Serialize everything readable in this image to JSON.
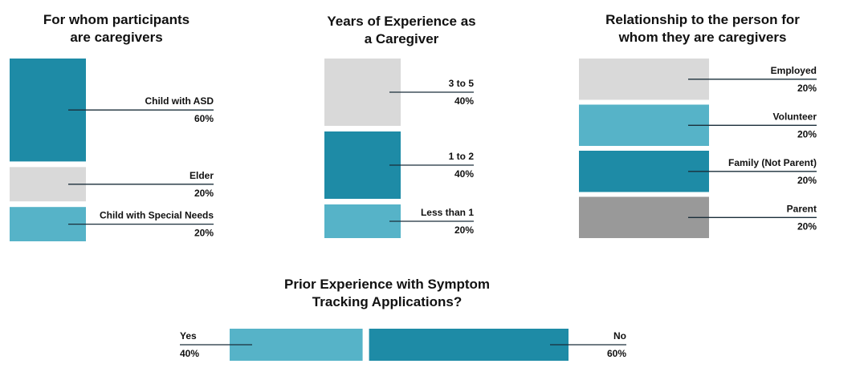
{
  "colors": {
    "teal_dark": "#1E8BA6",
    "teal_light": "#56B3C8",
    "light_gray": "#D9D9D9",
    "mid_gray": "#999999",
    "leader_line": "#1A2E3A"
  },
  "chart_data": [
    {
      "type": "bar",
      "stacked": true,
      "orientation": "vertical-stack",
      "title": "For whom participants are caregivers",
      "title_lines": [
        "For whom participants",
        "are caregivers"
      ],
      "categories": [
        "Child with ASD",
        "Elder",
        "Child with Special Needs"
      ],
      "values": [
        60,
        20,
        20
      ],
      "value_labels": [
        "60%",
        "20%",
        "20%"
      ],
      "colors": [
        "#1E8BA6",
        "#D9D9D9",
        "#56B3C8"
      ]
    },
    {
      "type": "bar",
      "stacked": true,
      "orientation": "vertical-stack",
      "title": "Years of Experience as a Caregiver",
      "title_lines": [
        "Years of Experience as",
        "a Caregiver"
      ],
      "categories": [
        "3 to 5",
        "1 to 2",
        "Less than 1"
      ],
      "values": [
        40,
        40,
        20
      ],
      "value_labels": [
        "40%",
        "40%",
        "20%"
      ],
      "colors": [
        "#D9D9D9",
        "#1E8BA6",
        "#56B3C8"
      ]
    },
    {
      "type": "bar",
      "stacked": true,
      "orientation": "vertical-stack",
      "title": "Relationship to the person for whom they are caregivers",
      "title_lines": [
        "Relationship to the person for",
        "whom they are caregivers"
      ],
      "categories": [
        "Employed",
        "Volunteer",
        "Family (Not Parent)",
        "Parent"
      ],
      "values": [
        20,
        20,
        20,
        20
      ],
      "value_labels": [
        "20%",
        "20%",
        "20%",
        "20%"
      ],
      "colors": [
        "#D9D9D9",
        "#56B3C8",
        "#1E8BA6",
        "#999999"
      ]
    },
    {
      "type": "bar",
      "stacked": true,
      "orientation": "horizontal-stack",
      "title": "Prior Experience with Symptom Tracking Applications?",
      "title_lines": [
        "Prior Experience with Symptom",
        "Tracking Applications?"
      ],
      "categories": [
        "Yes",
        "No"
      ],
      "values": [
        40,
        60
      ],
      "value_labels": [
        "40%",
        "60%"
      ],
      "colors": [
        "#56B3C8",
        "#1E8BA6"
      ]
    }
  ]
}
